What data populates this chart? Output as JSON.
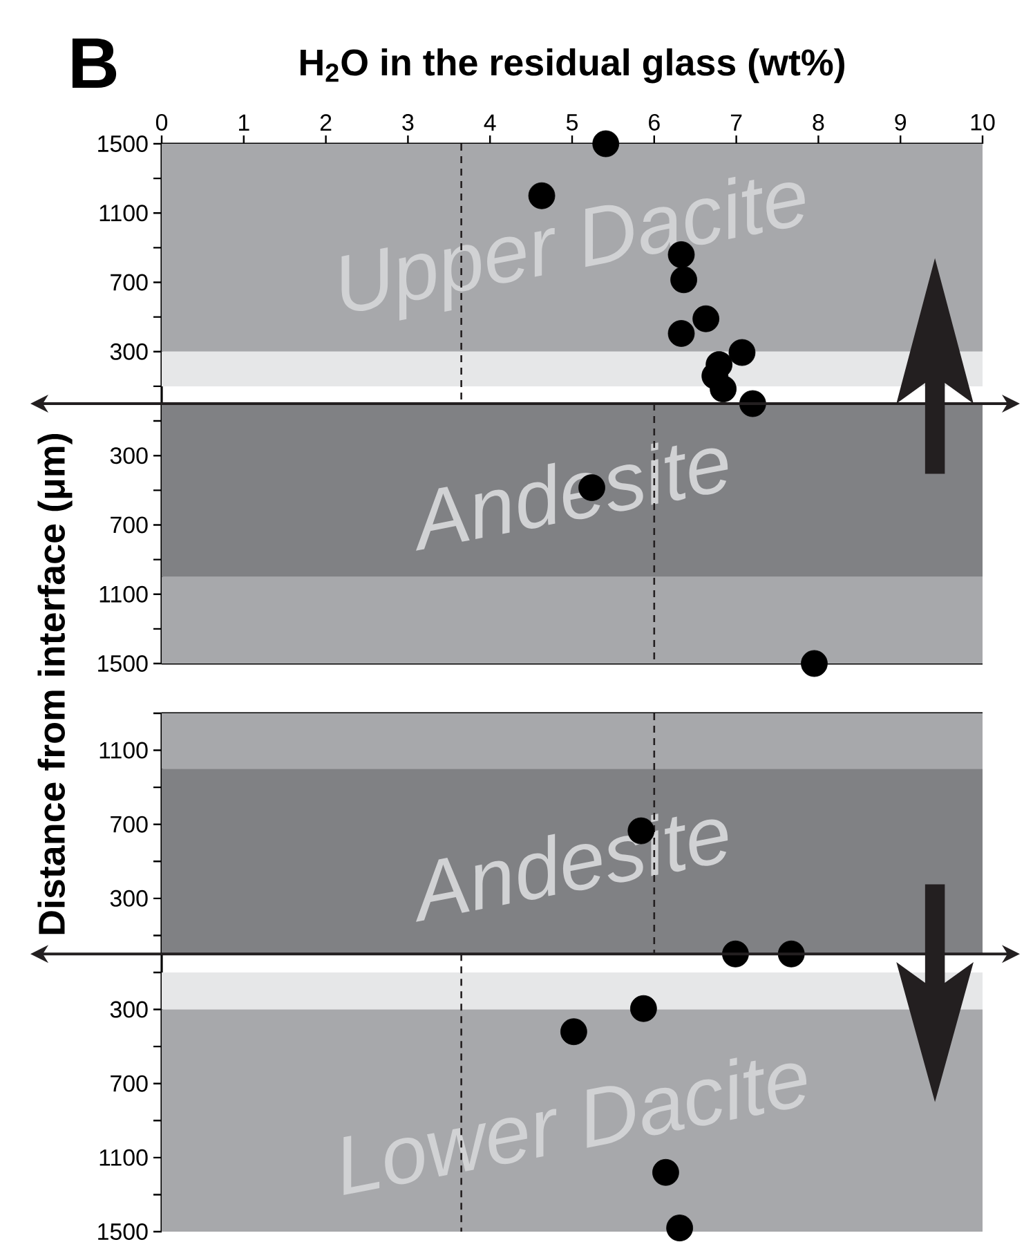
{
  "chart_data": [
    {
      "type": "scatter",
      "xlabel": "H$_{2}$O in the residual glass (wt%)",
      "ylabel": "Distance from interface (μm)",
      "annotations": [
        "B"
      ],
      "xlim": [
        0,
        10
      ],
      "xticks": [
        0,
        1,
        2,
        3,
        4,
        5,
        6,
        7,
        8,
        9,
        10
      ],
      "ylim": [
        -1500,
        1500
      ],
      "yticks": [
        1500,
        {
          "value": 1300,
          "label": null
        },
        1100,
        {
          "value": 900,
          "label": null
        },
        700,
        {
          "value": 500,
          "label": null
        },
        300,
        {
          "value": 100,
          "label": null
        },
        {
          "value": -100,
          "label": null
        },
        {
          "value": -300,
          "label": "300"
        },
        {
          "value": -500,
          "label": null
        },
        {
          "value": -700,
          "label": "700"
        },
        {
          "value": -900,
          "label": null
        },
        {
          "value": -1100,
          "label": "1100"
        },
        {
          "value": -1300,
          "label": null
        },
        {
          "value": -1500,
          "label": "1500"
        }
      ],
      "bands": [
        {
          "axis": "y",
          "from": 300,
          "to": 1500,
          "label": "Upper Dacite",
          "color": "#a7a8ab"
        },
        {
          "axis": "y",
          "from": 100,
          "to": 300,
          "color": "#e6e7e8"
        },
        {
          "axis": "y",
          "from": -1000,
          "to": 0,
          "label": "Andesite",
          "color": "#808184"
        },
        {
          "axis": "y",
          "from": -1500,
          "to": -1000,
          "color": "#a7a8ab"
        }
      ],
      "ref_lines": [
        {
          "axis": "y",
          "value": 0,
          "color": "#231f20"
        }
      ],
      "series": [
        {
          "type": "line",
          "color": "#231f20",
          "line_style": "dashed",
          "marker": "none",
          "x": [
            3.65,
            3.65
          ],
          "values": [
            1500,
            0
          ]
        },
        {
          "type": "line",
          "color": "#231f20",
          "line_style": "dashed",
          "marker": "none",
          "x": [
            6.0,
            6.0
          ],
          "values": [
            0,
            -1500
          ]
        },
        {
          "type": "scatter",
          "color": "#000000",
          "marker": "circle",
          "x": [
            5.41,
            4.63,
            6.33,
            6.36,
            6.63,
            6.33,
            7.07,
            6.79,
            6.74,
            6.84,
            7.2,
            5.24,
            7.95
          ],
          "values": [
            1500,
            1200,
            860,
            715,
            490,
            405,
            295,
            225,
            160,
            85,
            0,
            -485,
            -1500
          ]
        }
      ]
    },
    {
      "type": "scatter",
      "tick_labels": "y",
      "xlim": [
        0,
        10
      ],
      "ylim": [
        -1500,
        1300
      ],
      "yticks": [
        {
          "value": 1300,
          "label": null
        },
        1100,
        {
          "value": 900,
          "label": null
        },
        700,
        {
          "value": 500,
          "label": null
        },
        300,
        {
          "value": 100,
          "label": null
        },
        {
          "value": -100,
          "label": null
        },
        {
          "value": -300,
          "label": "300"
        },
        {
          "value": -500,
          "label": null
        },
        {
          "value": -700,
          "label": "700"
        },
        {
          "value": -900,
          "label": null
        },
        {
          "value": -1100,
          "label": "1100"
        },
        {
          "value": -1300,
          "label": null
        },
        {
          "value": -1500,
          "label": "1500"
        }
      ],
      "bands": [
        {
          "axis": "y",
          "from": 1000,
          "to": 1300,
          "color": "#a7a8ab"
        },
        {
          "axis": "y",
          "from": 0,
          "to": 1000,
          "label": "Andesite",
          "color": "#808184"
        },
        {
          "axis": "y",
          "from": -300,
          "to": -100,
          "color": "#e6e7e8"
        },
        {
          "axis": "y",
          "from": -1500,
          "to": -300,
          "label": "Lower Dacite",
          "color": "#a7a8ab"
        }
      ],
      "ref_lines": [
        {
          "axis": "y",
          "value": 0,
          "color": "#231f20"
        }
      ],
      "series": [
        {
          "type": "line",
          "color": "#231f20",
          "line_style": "dashed",
          "marker": "none",
          "x": [
            6.0,
            6.0
          ],
          "values": [
            1300,
            0
          ]
        },
        {
          "type": "line",
          "color": "#231f20",
          "line_style": "dashed",
          "marker": "none",
          "x": [
            3.65,
            3.65
          ],
          "values": [
            0,
            -1500
          ]
        },
        {
          "type": "scatter",
          "color": "#000000",
          "marker": "circle",
          "x": [
            5.84,
            6.99,
            7.67,
            5.87,
            5.02,
            6.14,
            6.31
          ],
          "values": [
            665,
            0,
            0,
            -295,
            -420,
            -1180,
            -1480
          ]
        }
      ]
    }
  ]
}
